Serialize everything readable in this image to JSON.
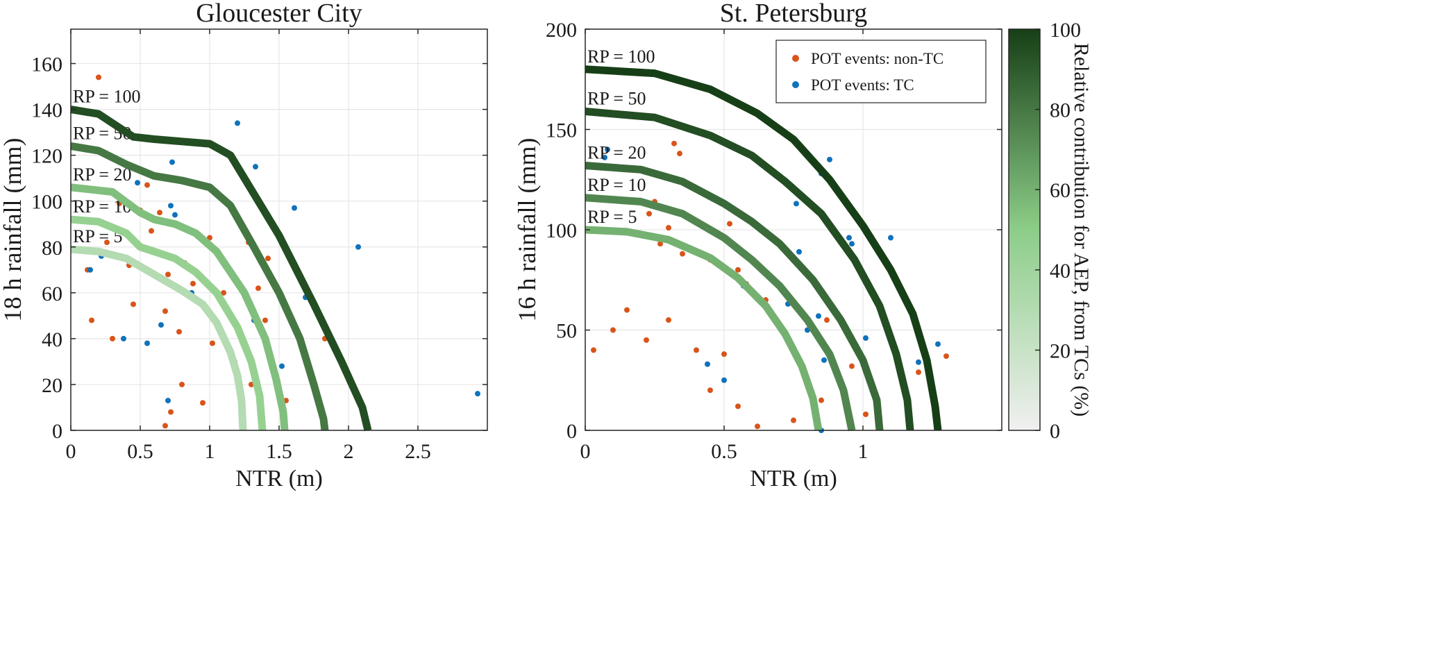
{
  "colorbar": {
    "label": "Relative contribution for AEP, from TCs (%)",
    "ticks": [
      0,
      20,
      40,
      60,
      80,
      100
    ],
    "range": [
      0,
      100
    ],
    "low_color": "#f0f0f0",
    "mid_color": "#8ccd88",
    "high_color": "#173f17"
  },
  "colors": {
    "non_tc": "#d9541a",
    "tc": "#0f72bc",
    "grid": "#e6e6e6"
  },
  "chart_data": [
    {
      "type": "scatter",
      "title": "Gloucester City",
      "xlabel": "NTR (m)",
      "ylabel": "18 h rainfall (mm)",
      "xlim": [
        0,
        3.0
      ],
      "ylim": [
        0,
        175
      ],
      "xticks": [
        0,
        0.5,
        1,
        1.5,
        2,
        2.5
      ],
      "xtick_labels": [
        "0",
        "0.5",
        "1",
        "1.5",
        "2",
        "2.5"
      ],
      "yticks": [
        0,
        20,
        40,
        60,
        80,
        100,
        120,
        140,
        160
      ],
      "grid": true,
      "return_period_curves": [
        {
          "label": "RP = 5",
          "tc_contribution": 30,
          "points": [
            [
              0,
              79
            ],
            [
              0.2,
              78
            ],
            [
              0.4,
              75
            ],
            [
              0.6,
              68
            ],
            [
              0.8,
              61
            ],
            [
              0.95,
              55
            ],
            [
              1.05,
              47
            ],
            [
              1.15,
              34
            ],
            [
              1.2,
              24
            ],
            [
              1.23,
              13
            ],
            [
              1.24,
              0
            ]
          ]
        },
        {
          "label": "RP = 10",
          "tc_contribution": 45,
          "points": [
            [
              0,
              92
            ],
            [
              0.2,
              91
            ],
            [
              0.4,
              86
            ],
            [
              0.5,
              80
            ],
            [
              0.6,
              78
            ],
            [
              0.75,
              75
            ],
            [
              0.9,
              69
            ],
            [
              1.05,
              60
            ],
            [
              1.2,
              45
            ],
            [
              1.3,
              30
            ],
            [
              1.36,
              15
            ],
            [
              1.38,
              0
            ]
          ]
        },
        {
          "label": "RP = 20",
          "tc_contribution": 55,
          "points": [
            [
              0,
              106
            ],
            [
              0.3,
              104
            ],
            [
              0.5,
              95
            ],
            [
              0.6,
              92
            ],
            [
              0.75,
              90
            ],
            [
              0.9,
              86
            ],
            [
              1.05,
              78
            ],
            [
              1.25,
              60
            ],
            [
              1.4,
              40
            ],
            [
              1.48,
              22
            ],
            [
              1.53,
              8
            ],
            [
              1.54,
              0
            ]
          ]
        },
        {
          "label": "RP = 50",
          "tc_contribution": 80,
          "points": [
            [
              0,
              124
            ],
            [
              0.2,
              122
            ],
            [
              0.4,
              116
            ],
            [
              0.6,
              111
            ],
            [
              0.8,
              109
            ],
            [
              1.0,
              106
            ],
            [
              1.15,
              98
            ],
            [
              1.3,
              82
            ],
            [
              1.5,
              60
            ],
            [
              1.65,
              40
            ],
            [
              1.75,
              20
            ],
            [
              1.82,
              5
            ],
            [
              1.83,
              0
            ]
          ]
        },
        {
          "label": "RP = 100",
          "tc_contribution": 95,
          "points": [
            [
              0,
              140
            ],
            [
              0.2,
              138
            ],
            [
              0.45,
              128
            ],
            [
              0.6,
              127
            ],
            [
              0.8,
              126
            ],
            [
              1.0,
              125
            ],
            [
              1.15,
              120
            ],
            [
              1.3,
              105
            ],
            [
              1.5,
              85
            ],
            [
              1.75,
              55
            ],
            [
              1.95,
              30
            ],
            [
              2.1,
              10
            ],
            [
              2.14,
              0
            ]
          ]
        }
      ],
      "series": [
        {
          "name": "POT events: non-TC",
          "points": [
            [
              0.2,
              154
            ],
            [
              0.55,
              107
            ],
            [
              0.64,
              95
            ],
            [
              0.58,
              87
            ],
            [
              0.82,
              73
            ],
            [
              1.0,
              84
            ],
            [
              1.28,
              82
            ],
            [
              1.42,
              75
            ],
            [
              1.4,
              48
            ],
            [
              1.45,
              27
            ],
            [
              1.55,
              13
            ],
            [
              1.83,
              40
            ],
            [
              0.35,
              99
            ],
            [
              0.5,
              96
            ],
            [
              0.26,
              82
            ],
            [
              0.12,
              70
            ],
            [
              0.42,
              72
            ],
            [
              0.7,
              68
            ],
            [
              0.88,
              64
            ],
            [
              1.1,
              60
            ],
            [
              1.35,
              62
            ],
            [
              0.3,
              40
            ],
            [
              0.15,
              48
            ],
            [
              0.45,
              55
            ],
            [
              0.68,
              52
            ],
            [
              0.78,
              43
            ],
            [
              1.02,
              38
            ],
            [
              1.18,
              30
            ],
            [
              1.3,
              20
            ],
            [
              0.8,
              20
            ],
            [
              0.95,
              12
            ],
            [
              0.72,
              8
            ],
            [
              0.68,
              2
            ]
          ]
        },
        {
          "name": "POT events: TC",
          "points": [
            [
              1.2,
              134
            ],
            [
              1.33,
              115
            ],
            [
              1.61,
              97
            ],
            [
              2.07,
              80
            ],
            [
              2.93,
              16
            ],
            [
              0.73,
              117
            ],
            [
              0.48,
              108
            ],
            [
              0.72,
              98
            ],
            [
              0.75,
              94
            ],
            [
              1.69,
              58
            ],
            [
              1.32,
              48
            ],
            [
              1.52,
              28
            ],
            [
              0.22,
              76
            ],
            [
              0.14,
              70
            ],
            [
              0.87,
              60
            ],
            [
              0.65,
              46
            ],
            [
              0.38,
              40
            ],
            [
              0.55,
              38
            ],
            [
              0.7,
              13
            ]
          ]
        }
      ],
      "legend": null
    },
    {
      "type": "scatter",
      "title": "St. Petersburg",
      "xlabel": "NTR (m)",
      "ylabel": "16 h rainfall (mm)",
      "xlim": [
        0,
        1.5
      ],
      "ylim": [
        0,
        200
      ],
      "xticks": [
        0,
        0.5,
        1
      ],
      "xtick_labels": [
        "0",
        "0.5",
        "1"
      ],
      "yticks": [
        0,
        50,
        100,
        150,
        200
      ],
      "grid": true,
      "return_period_curves": [
        {
          "label": "RP = 5",
          "tc_contribution": 60,
          "points": [
            [
              0,
              100
            ],
            [
              0.15,
              99
            ],
            [
              0.3,
              95
            ],
            [
              0.45,
              86
            ],
            [
              0.55,
              76
            ],
            [
              0.65,
              62
            ],
            [
              0.72,
              48
            ],
            [
              0.78,
              32
            ],
            [
              0.82,
              16
            ],
            [
              0.84,
              0
            ]
          ]
        },
        {
          "label": "RP = 10",
          "tc_contribution": 75,
          "points": [
            [
              0,
              116
            ],
            [
              0.2,
              114
            ],
            [
              0.35,
              108
            ],
            [
              0.5,
              96
            ],
            [
              0.6,
              85
            ],
            [
              0.7,
              72
            ],
            [
              0.8,
              55
            ],
            [
              0.88,
              38
            ],
            [
              0.93,
              20
            ],
            [
              0.96,
              0
            ]
          ]
        },
        {
          "label": "RP = 20",
          "tc_contribution": 85,
          "points": [
            [
              0,
              132
            ],
            [
              0.2,
              130
            ],
            [
              0.35,
              124
            ],
            [
              0.5,
              113
            ],
            [
              0.6,
              104
            ],
            [
              0.7,
              93
            ],
            [
              0.82,
              75
            ],
            [
              0.92,
              55
            ],
            [
              1.0,
              35
            ],
            [
              1.05,
              15
            ],
            [
              1.06,
              0
            ]
          ]
        },
        {
          "label": "RP = 50",
          "tc_contribution": 95,
          "points": [
            [
              0,
              159
            ],
            [
              0.25,
              156
            ],
            [
              0.45,
              147
            ],
            [
              0.6,
              137
            ],
            [
              0.72,
              124
            ],
            [
              0.85,
              108
            ],
            [
              0.97,
              85
            ],
            [
              1.06,
              62
            ],
            [
              1.12,
              38
            ],
            [
              1.16,
              15
            ],
            [
              1.17,
              0
            ]
          ]
        },
        {
          "label": "RP = 100",
          "tc_contribution": 100,
          "points": [
            [
              0,
              180
            ],
            [
              0.25,
              178
            ],
            [
              0.45,
              170
            ],
            [
              0.62,
              158
            ],
            [
              0.75,
              145
            ],
            [
              0.88,
              125
            ],
            [
              1.0,
              102
            ],
            [
              1.1,
              80
            ],
            [
              1.18,
              58
            ],
            [
              1.23,
              35
            ],
            [
              1.26,
              12
            ],
            [
              1.27,
              0
            ]
          ]
        }
      ],
      "series": [
        {
          "name": "POT events: non-TC",
          "points": [
            [
              0.32,
              143
            ],
            [
              0.34,
              138
            ],
            [
              0.25,
              114
            ],
            [
              0.23,
              108
            ],
            [
              0.3,
              101
            ],
            [
              0.52,
              103
            ],
            [
              0.27,
              93
            ],
            [
              0.35,
              88
            ],
            [
              0.45,
              85
            ],
            [
              0.55,
              80
            ],
            [
              0.58,
              73
            ],
            [
              0.65,
              65
            ],
            [
              0.72,
              48
            ],
            [
              0.87,
              55
            ],
            [
              0.96,
              32
            ],
            [
              1.01,
              8
            ],
            [
              1.2,
              29
            ],
            [
              1.3,
              37
            ],
            [
              0.03,
              40
            ],
            [
              0.1,
              50
            ],
            [
              0.15,
              60
            ],
            [
              0.22,
              45
            ],
            [
              0.3,
              55
            ],
            [
              0.4,
              40
            ],
            [
              0.5,
              38
            ],
            [
              0.45,
              20
            ],
            [
              0.55,
              12
            ],
            [
              0.62,
              2
            ],
            [
              0.75,
              5
            ],
            [
              0.85,
              15
            ]
          ]
        },
        {
          "name": "POT events: TC",
          "points": [
            [
              0.08,
              140
            ],
            [
              0.07,
              136
            ],
            [
              0.85,
              128
            ],
            [
              0.88,
              135
            ],
            [
              0.76,
              113
            ],
            [
              0.96,
              93
            ],
            [
              0.95,
              96
            ],
            [
              1.1,
              96
            ],
            [
              0.77,
              89
            ],
            [
              0.73,
              63
            ],
            [
              0.8,
              50
            ],
            [
              0.84,
              57
            ],
            [
              0.86,
              35
            ],
            [
              1.01,
              46
            ],
            [
              1.2,
              34
            ],
            [
              1.27,
              43
            ],
            [
              0.57,
              72
            ],
            [
              0.44,
              33
            ],
            [
              0.5,
              25
            ],
            [
              0.85,
              0
            ]
          ]
        }
      ],
      "legend": {
        "position": "top-right",
        "entries": [
          "POT events: non-TC",
          "POT events: TC"
        ]
      }
    }
  ]
}
